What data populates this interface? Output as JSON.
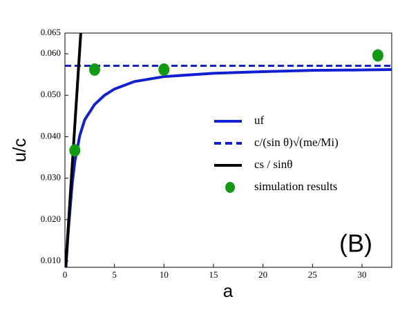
{
  "chart_data": {
    "type": "line",
    "annotation": "(B)",
    "x_label": "a",
    "y_label": "u/c",
    "xlim": [
      0,
      33
    ],
    "ylim": [
      0.0085,
      0.065
    ],
    "xticks": [
      0,
      5,
      10,
      15,
      20,
      25,
      30
    ],
    "yticks": [
      {
        "value": 0.01,
        "label": "0.010"
      },
      {
        "value": 0.02,
        "label": "0.020"
      },
      {
        "value": 0.03,
        "label": "0.030"
      },
      {
        "value": 0.04,
        "label": "0.040"
      },
      {
        "value": 0.05,
        "label": "0.050"
      },
      {
        "value": 0.06,
        "label": "0.060"
      },
      0.065
    ],
    "series": [
      {
        "name": "uf",
        "color": "#1020d0",
        "style": "solid",
        "x": [
          0.1,
          0.3,
          0.5,
          0.75,
          1,
          1.5,
          2,
          3,
          4,
          5,
          7,
          10,
          15,
          20,
          25,
          30,
          33
        ],
        "values": [
          0.0085,
          0.016,
          0.022,
          0.029,
          0.034,
          0.0403,
          0.0441,
          0.0478,
          0.05,
          0.0515,
          0.0533,
          0.0545,
          0.0553,
          0.0557,
          0.056,
          0.0561,
          0.0562
        ]
      },
      {
        "name": "c/(sin θ)√(me/Mi)",
        "color": "#1020d0",
        "style": "dashed",
        "x": [
          0,
          33
        ],
        "values": [
          0.0571,
          0.0571
        ]
      },
      {
        "name": "cs / sinθ",
        "color": "#000000",
        "style": "solid",
        "x": [
          0.07,
          1.6
        ],
        "values": [
          0.0085,
          0.065
        ]
      },
      {
        "name": "simulation results",
        "color": "#139a13",
        "style": "marker",
        "x": [
          1,
          3,
          10,
          31.6
        ],
        "values": [
          0.0367,
          0.0562,
          0.0562,
          0.0596
        ]
      }
    ]
  }
}
